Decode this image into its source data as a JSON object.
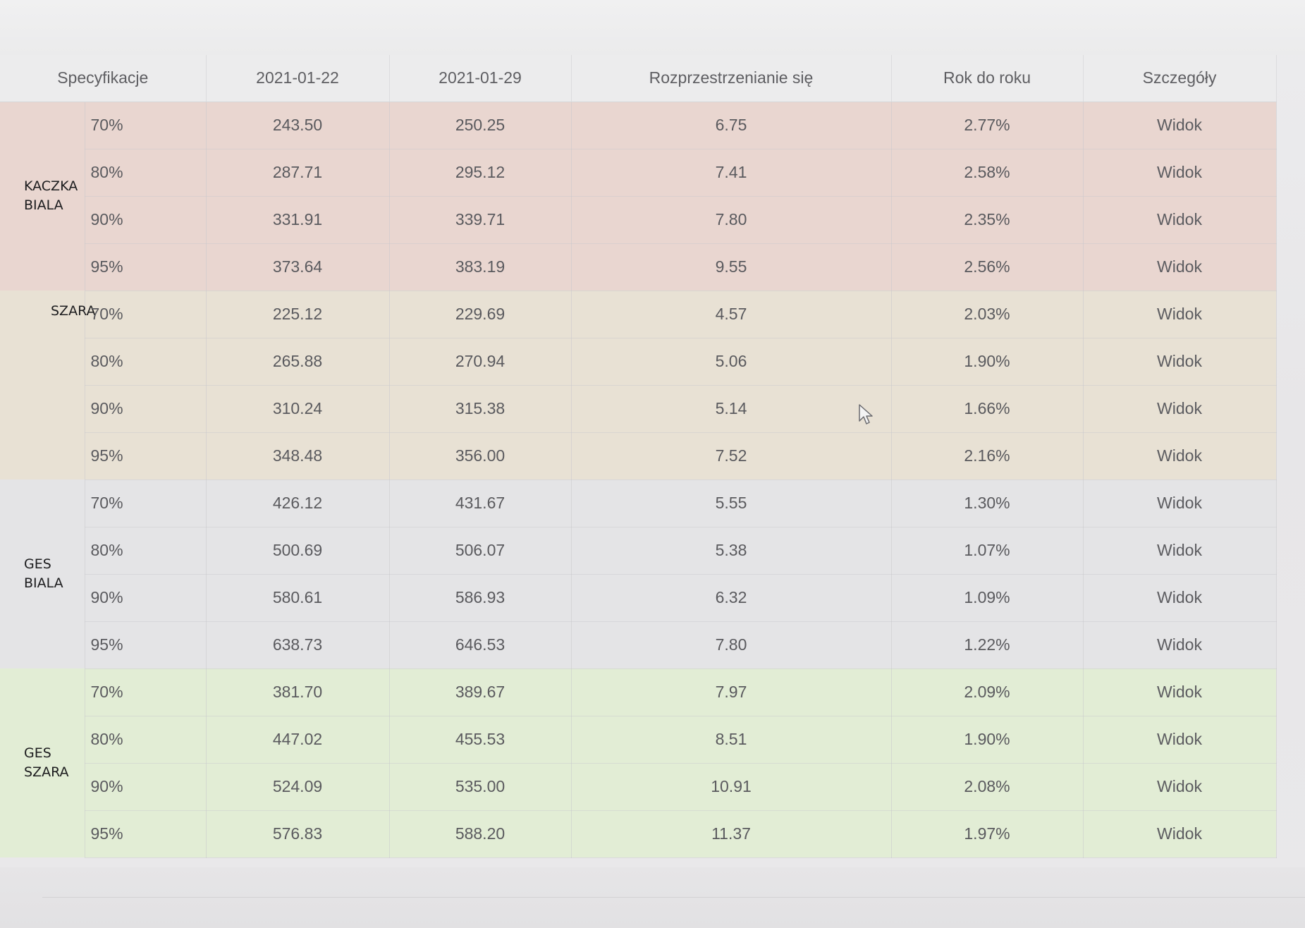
{
  "table": {
    "headers": {
      "spec": "Specyfikacje",
      "date1": "2021-01-22",
      "date2": "2021-01-29",
      "spread": "Rozprzestrzenianie się",
      "yoy": "Rok do roku",
      "details": "Szczegóły"
    },
    "groups": [
      {
        "label_lines": [
          "KACZKA",
          "BIALA"
        ],
        "rows": [
          {
            "spec": "70%",
            "date1": "243.50",
            "date2": "250.25",
            "spread": "6.75",
            "yoy": "2.77%",
            "details": "Widok"
          },
          {
            "spec": "80%",
            "date1": "287.71",
            "date2": "295.12",
            "spread": "7.41",
            "yoy": "2.58%",
            "details": "Widok"
          },
          {
            "spec": "90%",
            "date1": "331.91",
            "date2": "339.71",
            "spread": "7.80",
            "yoy": "2.35%",
            "details": "Widok"
          },
          {
            "spec": "95%",
            "date1": "373.64",
            "date2": "383.19",
            "spread": "9.55",
            "yoy": "2.56%",
            "details": "Widok"
          }
        ]
      },
      {
        "label_lines": [
          "SZARA"
        ],
        "rows": [
          {
            "spec": "70%",
            "date1": "225.12",
            "date2": "229.69",
            "spread": "4.57",
            "yoy": "2.03%",
            "details": "Widok"
          },
          {
            "spec": "80%",
            "date1": "265.88",
            "date2": "270.94",
            "spread": "5.06",
            "yoy": "1.90%",
            "details": "Widok"
          },
          {
            "spec": "90%",
            "date1": "310.24",
            "date2": "315.38",
            "spread": "5.14",
            "yoy": "1.66%",
            "details": "Widok"
          },
          {
            "spec": "95%",
            "date1": "348.48",
            "date2": "356.00",
            "spread": "7.52",
            "yoy": "2.16%",
            "details": "Widok"
          }
        ]
      },
      {
        "label_lines": [
          "GES",
          "BIALA"
        ],
        "rows": [
          {
            "spec": "70%",
            "date1": "426.12",
            "date2": "431.67",
            "spread": "5.55",
            "yoy": "1.30%",
            "details": "Widok"
          },
          {
            "spec": "80%",
            "date1": "500.69",
            "date2": "506.07",
            "spread": "5.38",
            "yoy": "1.07%",
            "details": "Widok"
          },
          {
            "spec": "90%",
            "date1": "580.61",
            "date2": "586.93",
            "spread": "6.32",
            "yoy": "1.09%",
            "details": "Widok"
          },
          {
            "spec": "95%",
            "date1": "638.73",
            "date2": "646.53",
            "spread": "7.80",
            "yoy": "1.22%",
            "details": "Widok"
          }
        ]
      },
      {
        "label_lines": [
          "GES",
          "SZARA"
        ],
        "rows": [
          {
            "spec": "70%",
            "date1": "381.70",
            "date2": "389.67",
            "spread": "7.97",
            "yoy": "2.09%",
            "details": "Widok"
          },
          {
            "spec": "80%",
            "date1": "447.02",
            "date2": "455.53",
            "spread": "8.51",
            "yoy": "1.90%",
            "details": "Widok"
          },
          {
            "spec": "90%",
            "date1": "524.09",
            "date2": "535.00",
            "spread": "10.91",
            "yoy": "2.08%",
            "details": "Widok"
          },
          {
            "spec": "95%",
            "date1": "576.83",
            "date2": "588.20",
            "spread": "11.37",
            "yoy": "1.97%",
            "details": "Widok"
          }
        ]
      }
    ]
  },
  "colors": {
    "kaczka_biala_band": "#e9d6d0",
    "szara_band": "#e8e1d4",
    "ges_biala_band": "#e4e4e6",
    "ges_szara_band": "#e2edd5"
  },
  "icons": {
    "cursor": "mouse-pointer-icon"
  }
}
